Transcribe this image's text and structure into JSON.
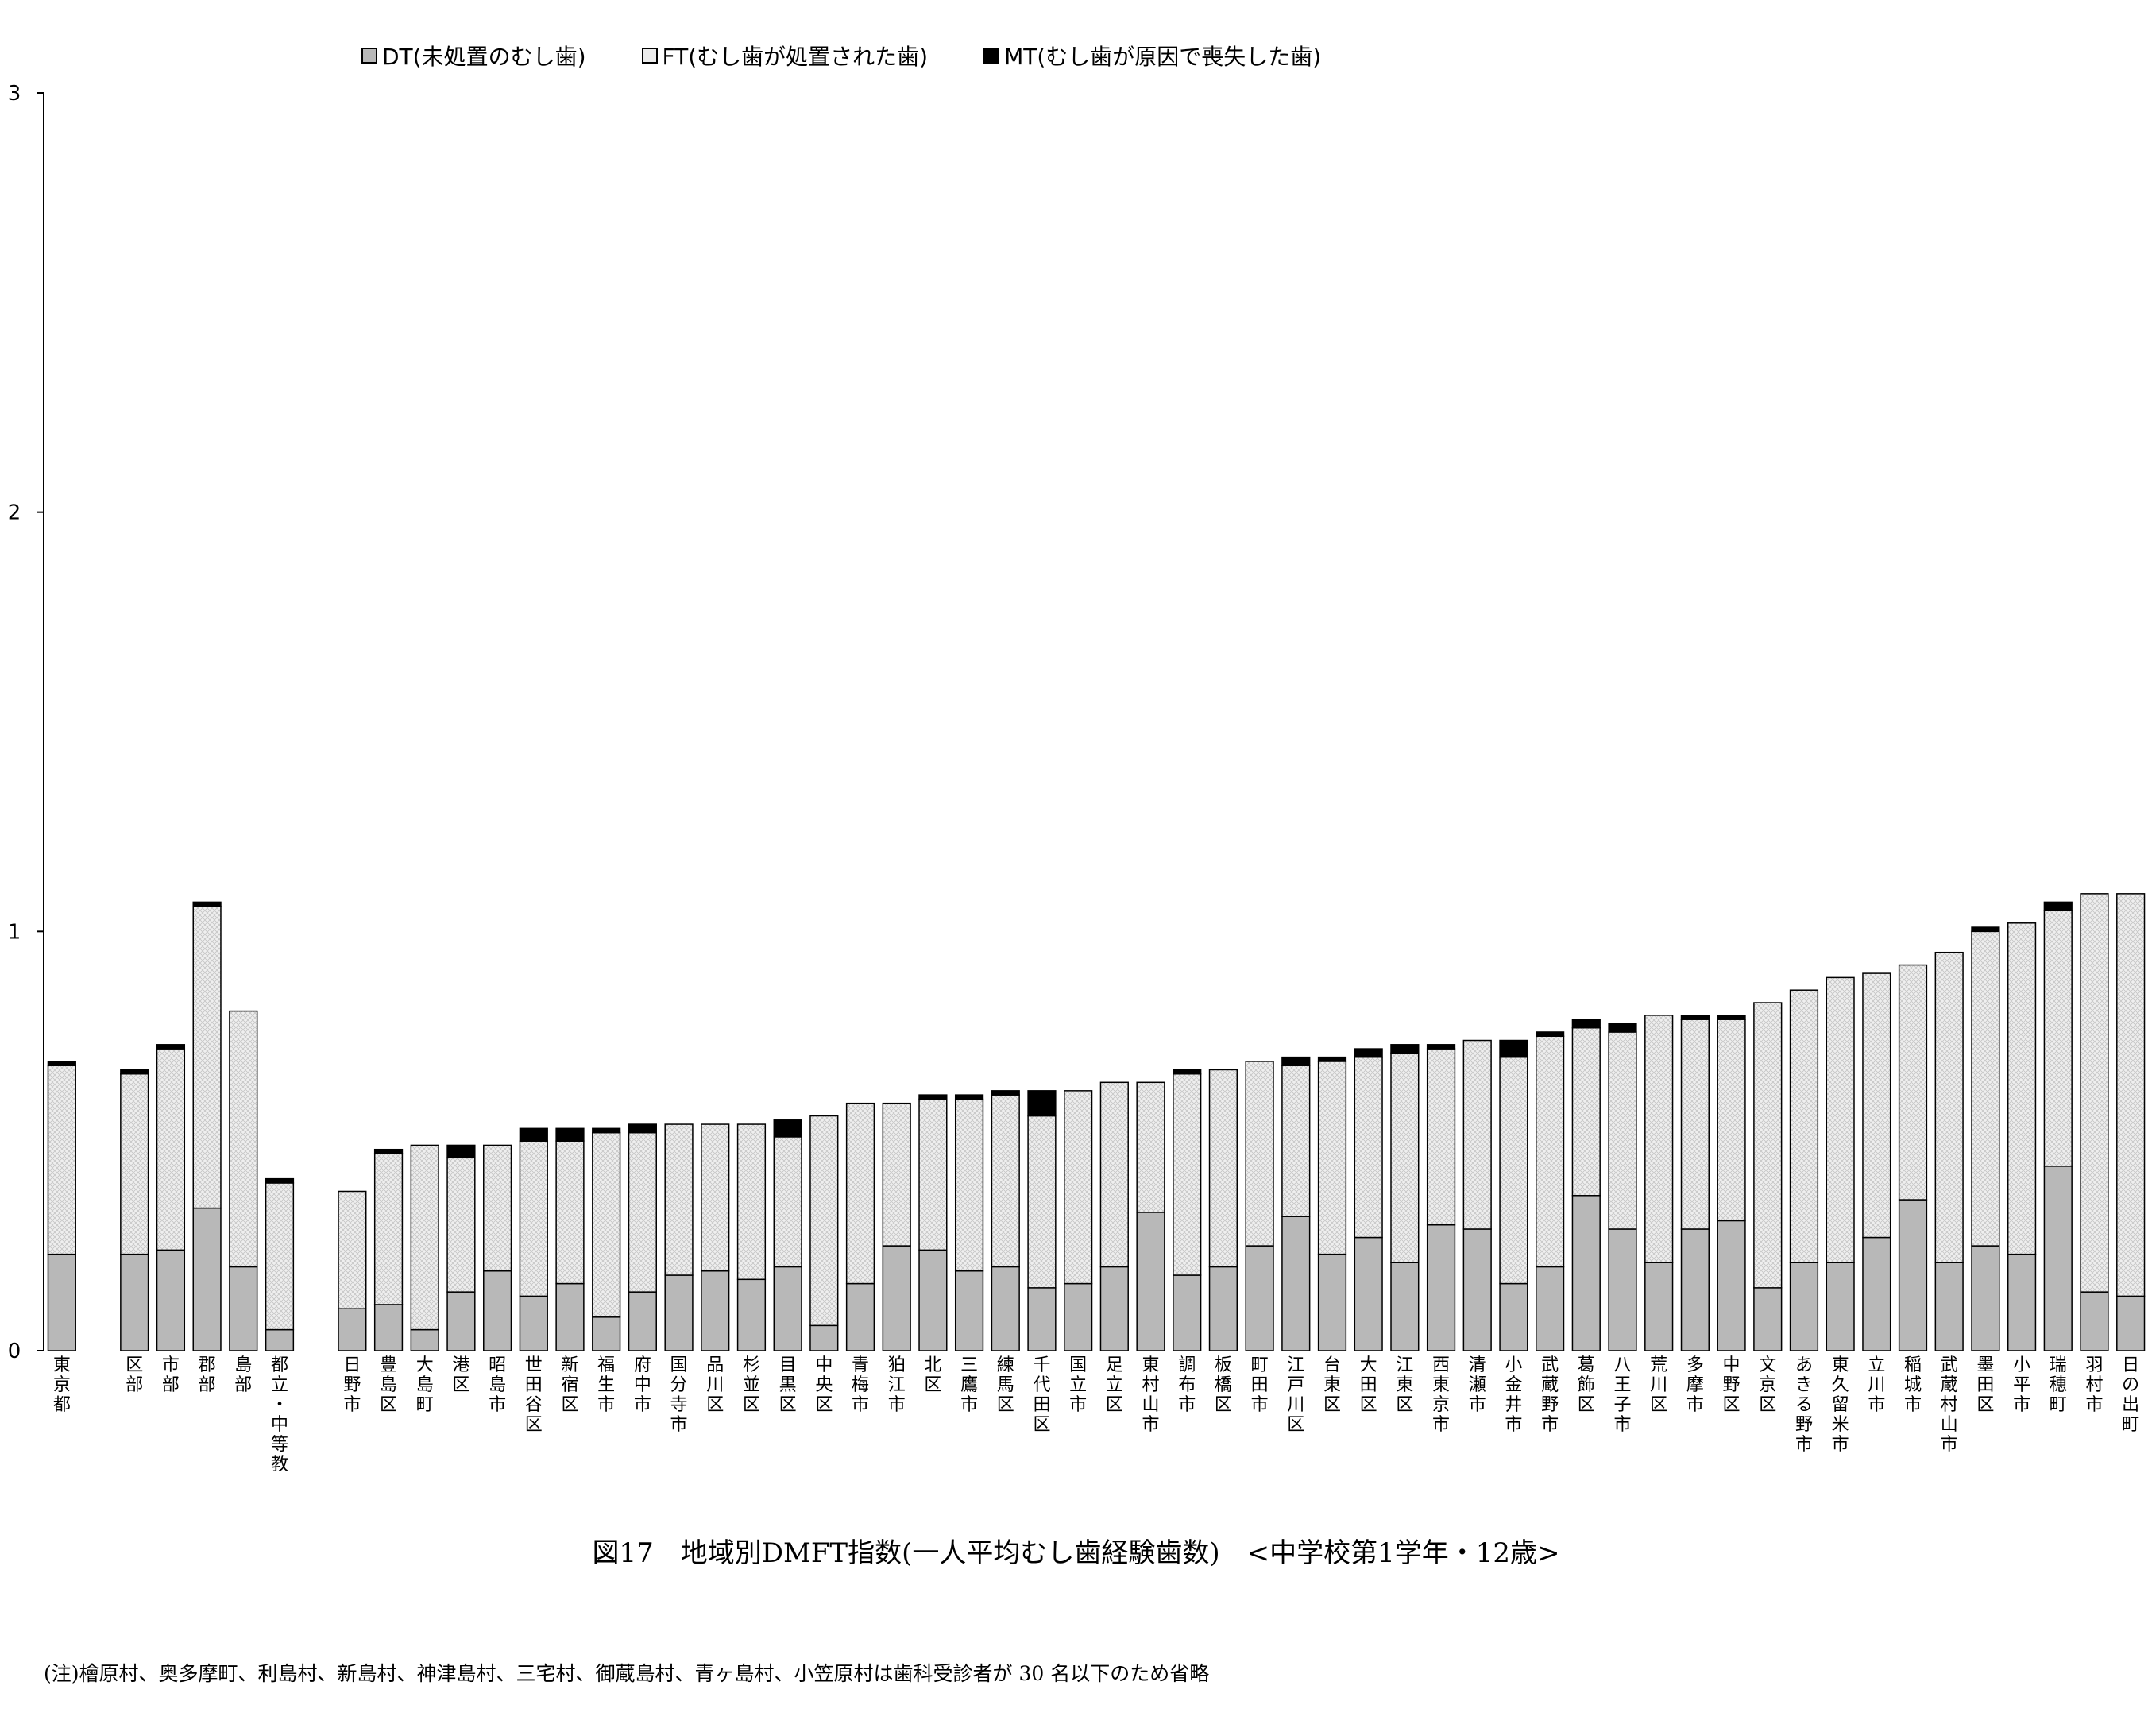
{
  "chart_data": {
    "type": "bar",
    "stacked": true,
    "title": "図17　地域別DMFT指数(一人平均むし歯経験歯数)　<中学校第1学年・12歳>",
    "ylim": [
      0,
      3
    ],
    "yticks": [
      "0",
      "1",
      "2",
      "3"
    ],
    "legend_position": "top",
    "colors": {
      "DT": "#b8b8b8",
      "FT": "#ececec",
      "MT": "#000000"
    },
    "categories": [
      "東京都",
      "",
      "区部",
      "市部",
      "郡部",
      "島部",
      "都立・中等教",
      "",
      "日野市",
      "豊島区",
      "大島町",
      "港区",
      "昭島市",
      "世田谷区",
      "新宿区",
      "福生市",
      "府中市",
      "国分寺市",
      "品川区",
      "杉並区",
      "目黒区",
      "中央区",
      "青梅市",
      "狛江市",
      "北区",
      "三鷹市",
      "練馬区",
      "千代田区",
      "国立市",
      "足立区",
      "東村山市",
      "調布市",
      "板橋区",
      "町田市",
      "江戸川区",
      "台東区",
      "大田区",
      "江東区",
      "西東京市",
      "清瀬市",
      "小金井市",
      "武蔵野市",
      "葛飾区",
      "八王子市",
      "荒川区",
      "多摩市",
      "中野区",
      "文京区",
      "あきる野市",
      "東久留米市",
      "立川市",
      "稲城市",
      "武蔵村山市",
      "墨田区",
      "小平市",
      "瑞穂町",
      "羽村市",
      "日の出町"
    ],
    "series": [
      {
        "name": "DT(未処置のむし歯)",
        "values": [
          0.23,
          null,
          0.23,
          0.24,
          0.34,
          0.2,
          0.05,
          null,
          0.1,
          0.11,
          0.05,
          0.14,
          0.19,
          0.13,
          0.16,
          0.08,
          0.14,
          0.18,
          0.19,
          0.17,
          0.2,
          0.06,
          0.16,
          0.25,
          0.24,
          0.19,
          0.2,
          0.15,
          0.16,
          0.2,
          0.33,
          0.18,
          0.2,
          0.25,
          0.32,
          0.23,
          0.27,
          0.21,
          0.3,
          0.29,
          0.16,
          0.2,
          0.37,
          0.29,
          0.21,
          0.29,
          0.31,
          0.15,
          0.21,
          0.21,
          0.27,
          0.36,
          0.21,
          0.25,
          0.23,
          0.44,
          0.14,
          0.13
        ]
      },
      {
        "name": "FT(むし歯が処置された歯)",
        "values": [
          0.45,
          null,
          0.43,
          0.48,
          0.72,
          0.61,
          0.35,
          null,
          0.28,
          0.36,
          0.44,
          0.32,
          0.3,
          0.37,
          0.34,
          0.44,
          0.38,
          0.36,
          0.35,
          0.37,
          0.31,
          0.5,
          0.43,
          0.34,
          0.36,
          0.41,
          0.41,
          0.41,
          0.46,
          0.44,
          0.31,
          0.48,
          0.47,
          0.44,
          0.36,
          0.46,
          0.43,
          0.5,
          0.42,
          0.45,
          0.54,
          0.55,
          0.4,
          0.47,
          0.59,
          0.5,
          0.48,
          0.68,
          0.65,
          0.68,
          0.63,
          0.56,
          0.74,
          0.75,
          0.79,
          0.61,
          0.95,
          0.96
        ]
      },
      {
        "name": "MT(むし歯が原因で喪失した歯)",
        "values": [
          0.01,
          null,
          0.01,
          0.01,
          0.01,
          0.0,
          0.01,
          null,
          0.0,
          0.01,
          0.0,
          0.03,
          0.0,
          0.03,
          0.03,
          0.01,
          0.02,
          0.0,
          0.0,
          0.0,
          0.04,
          0.0,
          0.0,
          0.0,
          0.01,
          0.01,
          0.01,
          0.06,
          0.0,
          0.0,
          0.0,
          0.01,
          0.0,
          0.0,
          0.02,
          0.01,
          0.02,
          0.02,
          0.01,
          0.0,
          0.04,
          0.01,
          0.02,
          0.02,
          0.0,
          0.01,
          0.01,
          0.0,
          0.0,
          0.0,
          0.0,
          0.0,
          0.0,
          0.01,
          0.0,
          0.02,
          0.0,
          0.0
        ]
      }
    ]
  },
  "legend": [
    {
      "label": "DT(未処置のむし歯)",
      "color": "#b8b8b8"
    },
    {
      "label": "FT(むし歯が処置された歯)",
      "color": "#ececec"
    },
    {
      "label": "MT(むし歯が原因で喪失した歯)",
      "color": "#000000"
    }
  ],
  "caption": "図17　地域別DMFT指数(一人平均むし歯経験歯数)　<中学校第1学年・12歳>",
  "note": "(注)檜原村、奥多摩町、利島村、新島村、神津島村、三宅村、御蔵島村、青ヶ島村、小笠原村は歯科受診者が 30 名以下のため省略"
}
